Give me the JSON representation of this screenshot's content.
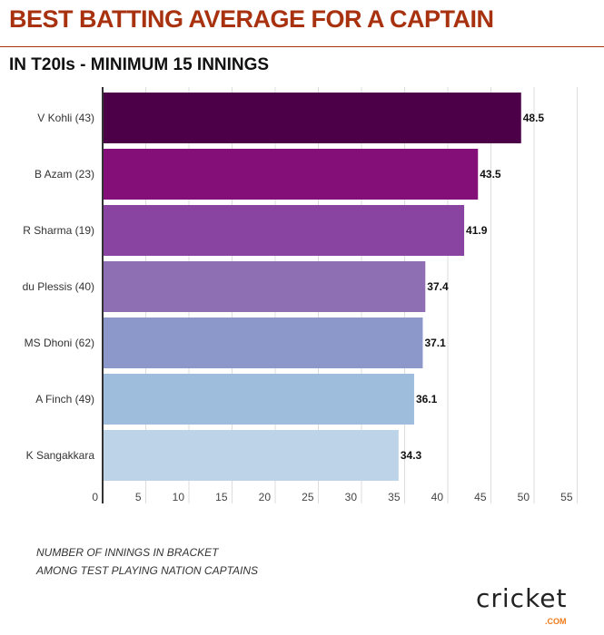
{
  "header": {
    "title": "BEST BATTING AVERAGE FOR A CAPTAIN",
    "subtitle": "IN T20Is - MINIMUM 15 INNINGS"
  },
  "notes": [
    "NUMBER OF INNINGS IN BRACKET",
    "AMONG TEST PLAYING NATION CAPTAINS"
  ],
  "logo": {
    "text": "cricket",
    "suffix": ".COM"
  },
  "chart_data": {
    "type": "bar",
    "orientation": "horizontal",
    "title": "BEST BATTING AVERAGE FOR A CAPTAIN",
    "subtitle": "IN T20Is - MINIMUM 15 INNINGS",
    "categories": [
      "V Kohli (43)",
      "B Azam (23)",
      "R Sharma (19)",
      "du Plessis (40)",
      "MS Dhoni (62)",
      "A Finch (49)",
      "K Sangakkara"
    ],
    "values": [
      48.5,
      43.5,
      41.9,
      37.4,
      37.1,
      36.1,
      34.3
    ],
    "data_labels": [
      "48.5",
      "43.5",
      "41.9",
      "37.4",
      "37.1",
      "36.1",
      "34.3"
    ],
    "colors": [
      "#4b0047",
      "#840f79",
      "#8943a0",
      "#8f6fb3",
      "#8b98c9",
      "#9ebcdb",
      "#bdd4e8"
    ],
    "xlim": [
      0,
      55
    ],
    "xticks": [
      "0",
      "5",
      "10",
      "15",
      "20",
      "25",
      "30",
      "35",
      "40",
      "45",
      "50",
      "55"
    ],
    "xlabel": "",
    "ylabel": "",
    "grid": true
  }
}
